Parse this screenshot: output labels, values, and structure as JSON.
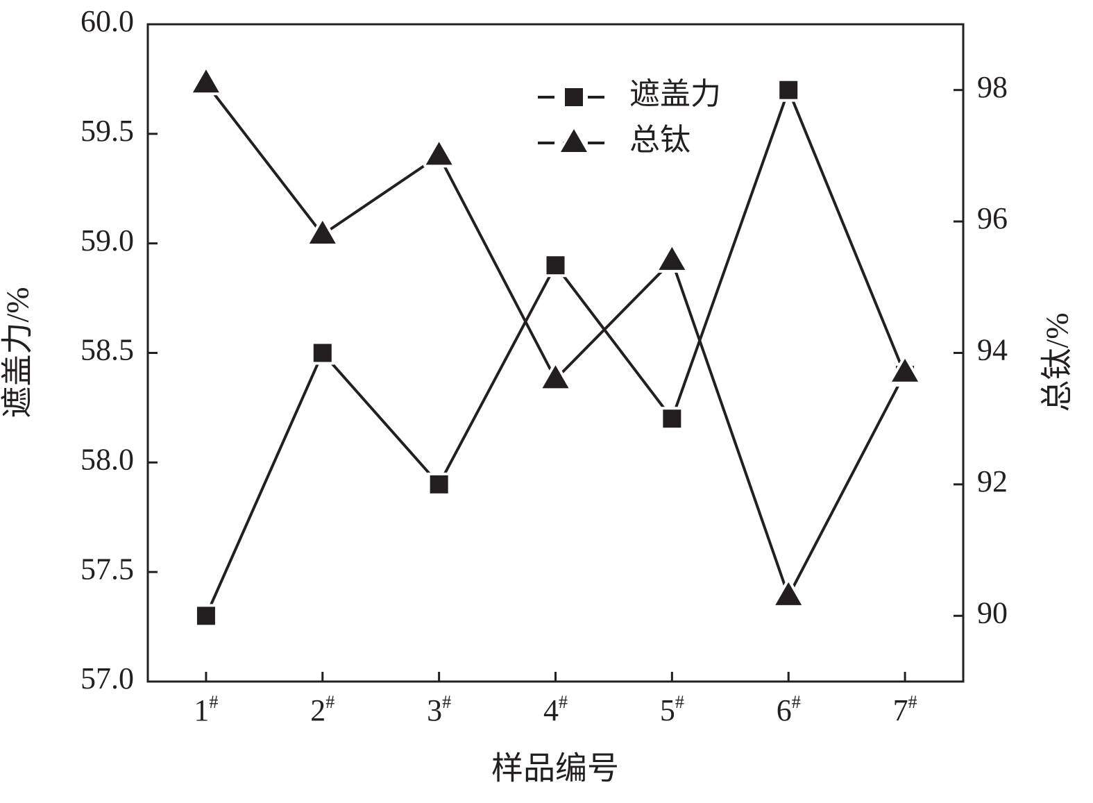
{
  "chart_data": {
    "type": "line",
    "xlabel": "样品编号",
    "ylabel": "遮盖力/%",
    "y2label": "总钛/%",
    "categories": [
      "1#",
      "2#",
      "3#",
      "4#",
      "5#",
      "6#",
      "7#"
    ],
    "series": [
      {
        "name": "遮盖力",
        "color": "#231f20",
        "marker": "square",
        "values": [
          57.3,
          58.5,
          57.9,
          58.9,
          58.2,
          59.7,
          58.4
        ]
      },
      {
        "name": "总钛",
        "color": "#231f20",
        "marker": "triangle",
        "axis": "y2",
        "values": [
          98.1,
          95.8,
          97.0,
          93.6,
          95.4,
          90.3,
          93.7
        ]
      }
    ],
    "ylim": [
      57,
      60
    ],
    "yticks": [
      {
        "value": 57,
        "label": "57.0"
      },
      {
        "value": 57.5,
        "label": "57.5"
      },
      {
        "value": 58,
        "label": "58.0"
      },
      {
        "value": 58.5,
        "label": "58.5"
      },
      {
        "value": 59,
        "label": "59.0"
      },
      {
        "value": 59.5,
        "label": "59.5"
      },
      {
        "value": 60,
        "label": "60.0"
      }
    ],
    "y2lim": [
      89,
      99
    ],
    "y2ticks": [
      90,
      92,
      94,
      96,
      98
    ],
    "legend": "upper right",
    "grid": false
  }
}
